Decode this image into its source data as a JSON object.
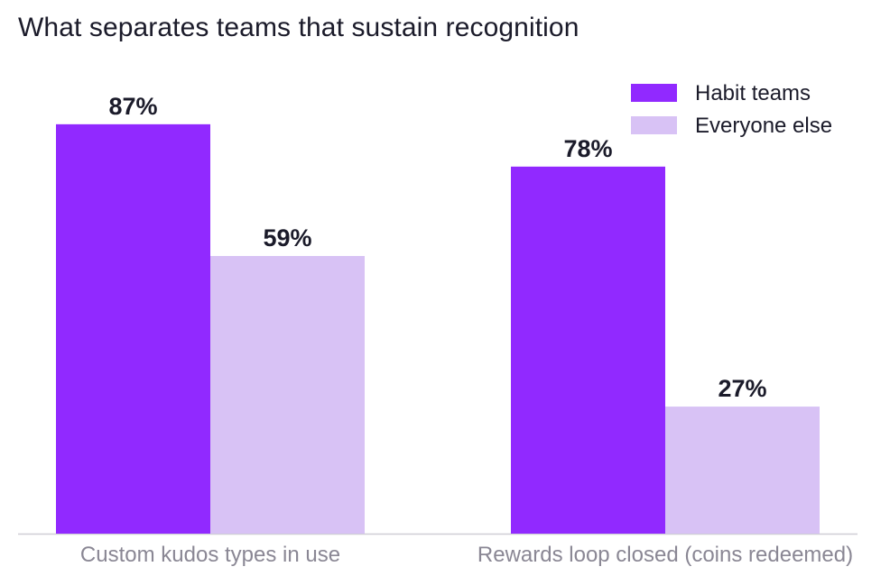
{
  "chart_data": {
    "type": "bar",
    "title": "What separates teams that sustain recognition",
    "categories": [
      "Custom kudos types in use",
      "Rewards loop closed (coins redeemed)"
    ],
    "series": [
      {
        "name": "Habit teams",
        "values": [
          87,
          78
        ],
        "color": "#9129ff"
      },
      {
        "name": "Everyone else",
        "values": [
          59,
          27
        ],
        "color": "#d8c2f5"
      }
    ],
    "value_suffix": "%",
    "ylim": [
      0,
      100
    ],
    "grid": false,
    "legend_position": "top-right",
    "axis_color": "#cfcdd6"
  }
}
